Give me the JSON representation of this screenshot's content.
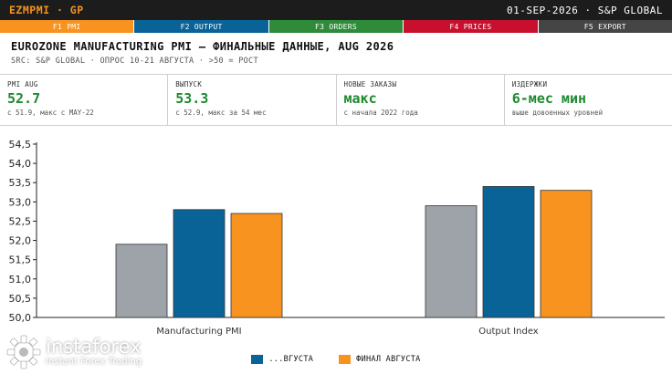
{
  "topbar": {
    "ticker": "EZMPMI · GP",
    "datetime": "01-SEP-2026 · S&P GLOBAL"
  },
  "fkeys": [
    {
      "label": "F1 PMI",
      "color": "#f7931e"
    },
    {
      "label": "F2 OUTPUT",
      "color": "#0a6396"
    },
    {
      "label": "F3 ORDERS",
      "color": "#2e8b3a"
    },
    {
      "label": "F4 PRICES",
      "color": "#c8102e"
    },
    {
      "label": "F5 EXPORT",
      "color": "#454545"
    }
  ],
  "header": {
    "title": "EUROZONE MANUFACTURING PMI — ФИНАЛЬНЫЕ ДАННЫЕ, AUG 2026",
    "subtitle": "SRC: S&P GLOBAL · ОПРОС 10-21 АВГУСТА · >50 = РОСТ"
  },
  "metrics": [
    {
      "label": "PMI AUG",
      "value": "52.7",
      "note": "с 51.9, макс с MAY-22"
    },
    {
      "label": "ВЫПУСК",
      "value": "53.3",
      "note": "с 52.9, макс за 54 мес"
    },
    {
      "label": "НОВЫЕ ЗАКАЗЫ",
      "value": "макс",
      "note": "с начала 2022 года"
    },
    {
      "label": "ИЗДЕРЖКИ",
      "value": "6-мес мин",
      "note": "выше довоенных уровней"
    }
  ],
  "chart_data": {
    "type": "bar",
    "categories": [
      "Manufacturing PMI",
      "Output Index"
    ],
    "series": [
      {
        "name": "",
        "values": [
          51.9,
          52.9
        ],
        "color": "#9da3a9"
      },
      {
        "name": "",
        "values": [
          52.8,
          53.4
        ],
        "color": "#0a6396"
      },
      {
        "name": "ФИНАЛ АВГУСТА",
        "values": [
          52.7,
          53.3
        ],
        "color": "#f7931e"
      }
    ],
    "ylim": [
      50.0,
      54.5
    ],
    "yticks": [
      "50,0",
      "50,5",
      "51,0",
      "51,5",
      "52,0",
      "52,5",
      "53,0",
      "53,5",
      "54,0",
      "54,5"
    ],
    "grid": false,
    "legend": "bottom"
  },
  "legend": {
    "items": [
      {
        "label": "...ВГУСТА",
        "color": "#0a6396"
      },
      {
        "label": "ФИНАЛ АВГУСТА",
        "color": "#f7931e"
      }
    ]
  },
  "watermark": {
    "brand": "instaforex",
    "tagline": "Instant Forex Trading"
  }
}
